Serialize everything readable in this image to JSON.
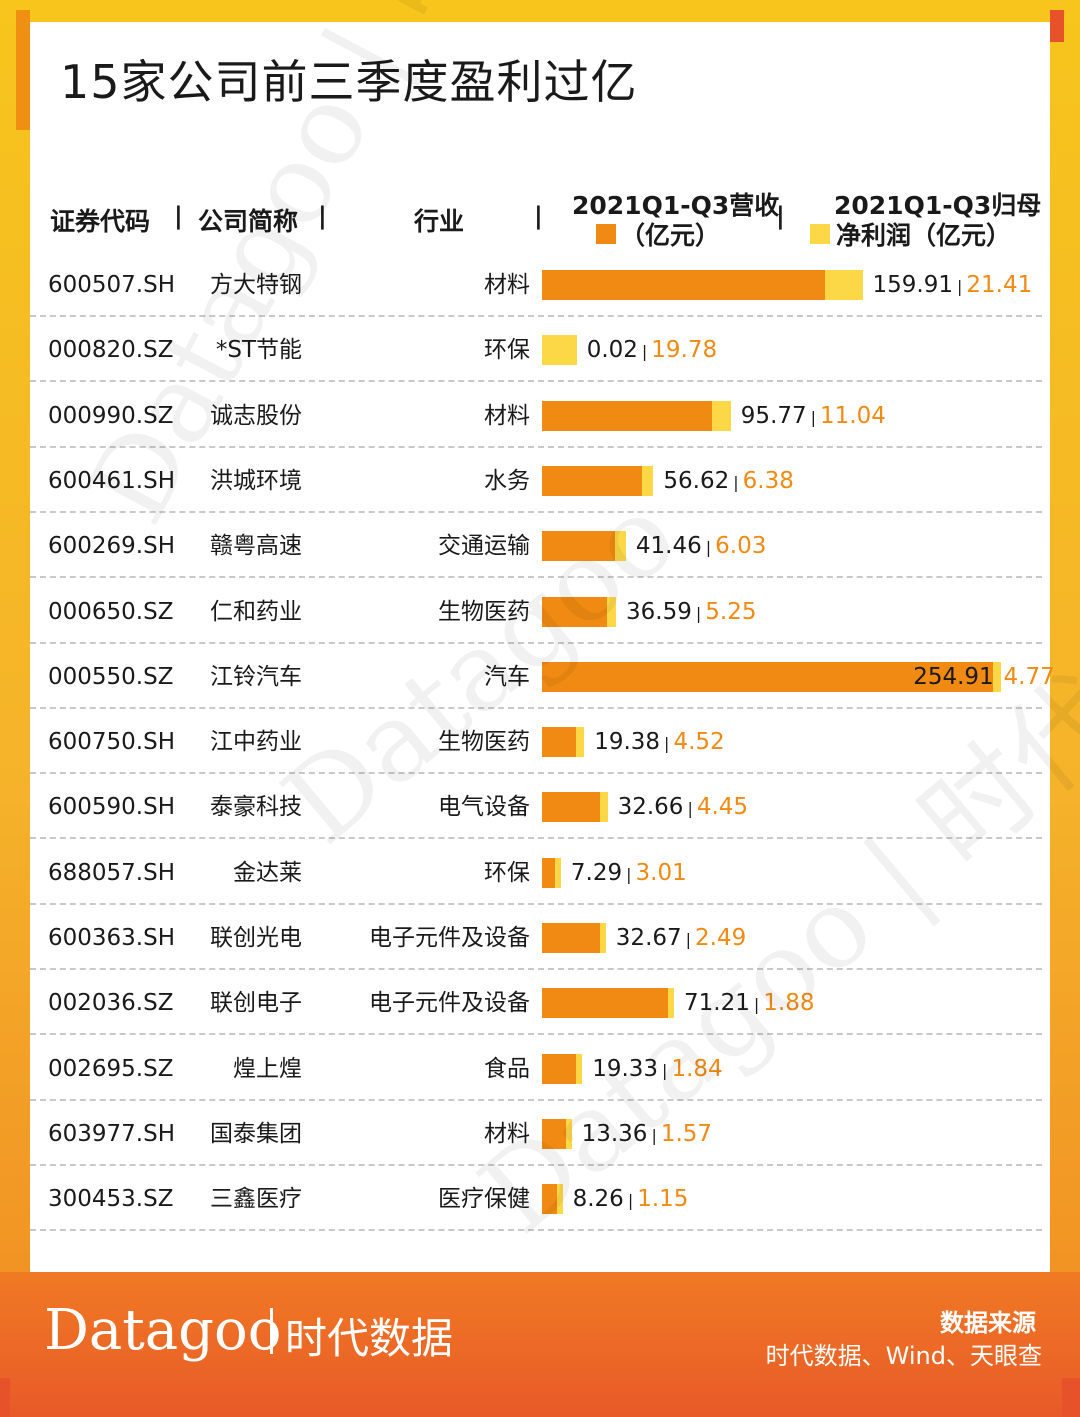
{
  "title": "15家公司前三季度盈利过亿",
  "headers": {
    "code": "证券代码",
    "name": "公司简称",
    "industry": "行业",
    "revenue_line1": "2021Q1-Q3营收",
    "revenue_line2": "（亿元）",
    "profit_line1": "2021Q1-Q3归母",
    "profit_line2": "净利润（亿元）",
    "separator": "|"
  },
  "colors": {
    "revenue": "#f08a12",
    "net_profit": "#fcd746",
    "accent": "#e8522a"
  },
  "chart_data": {
    "type": "bar",
    "orientation": "horizontal",
    "stacked": true,
    "categories": [
      "方大特钢",
      "*ST节能",
      "诚志股份",
      "洪城环境",
      "赣粤高速",
      "仁和药业",
      "江铃汽车",
      "江中药业",
      "泰豪科技",
      "金达莱",
      "联创光电",
      "联创电子",
      "煌上煌",
      "国泰集团",
      "三鑫医疗"
    ],
    "series": [
      {
        "name": "2021Q1-Q3营收（亿元）",
        "values": [
          159.91,
          0.02,
          95.77,
          56.62,
          41.46,
          36.59,
          254.91,
          19.38,
          32.66,
          7.29,
          32.67,
          71.21,
          19.33,
          13.36,
          8.26
        ]
      },
      {
        "name": "2021Q1-Q3归母净利润（亿元）",
        "values": [
          21.41,
          19.78,
          11.04,
          6.38,
          6.03,
          5.25,
          4.77,
          4.52,
          4.45,
          3.01,
          2.49,
          1.88,
          1.84,
          1.57,
          1.15
        ]
      }
    ]
  },
  "rows": [
    {
      "code": "600507.SH",
      "name": "方大特钢",
      "industry": "材料",
      "revenue": "159.91",
      "profit": "21.41"
    },
    {
      "code": "000820.SZ",
      "name": "*ST节能",
      "industry": "环保",
      "revenue": "0.02",
      "profit": "19.78"
    },
    {
      "code": "000990.SZ",
      "name": "诚志股份",
      "industry": "材料",
      "revenue": "95.77",
      "profit": "11.04"
    },
    {
      "code": "600461.SH",
      "name": "洪城环境",
      "industry": "水务",
      "revenue": "56.62",
      "profit": "6.38"
    },
    {
      "code": "600269.SH",
      "name": "赣粤高速",
      "industry": "交通运输",
      "revenue": "41.46",
      "profit": "6.03"
    },
    {
      "code": "000650.SZ",
      "name": "仁和药业",
      "industry": "生物医药",
      "revenue": "36.59",
      "profit": "5.25"
    },
    {
      "code": "000550.SZ",
      "name": "江铃汽车",
      "industry": "汽车",
      "revenue": "254.91",
      "profit": "4.77"
    },
    {
      "code": "600750.SH",
      "name": "江中药业",
      "industry": "生物医药",
      "revenue": "19.38",
      "profit": "4.52"
    },
    {
      "code": "600590.SH",
      "name": "泰豪科技",
      "industry": "电气设备",
      "revenue": "32.66",
      "profit": "4.45"
    },
    {
      "code": "688057.SH",
      "name": "金达莱",
      "industry": "环保",
      "revenue": "7.29",
      "profit": "3.01"
    },
    {
      "code": "600363.SH",
      "name": "联创光电",
      "industry": "电子元件及设备",
      "revenue": "32.67",
      "profit": "2.49"
    },
    {
      "code": "002036.SZ",
      "name": "联创电子",
      "industry": "电子元件及设备",
      "revenue": "71.21",
      "profit": "1.88"
    },
    {
      "code": "002695.SZ",
      "name": "煌上煌",
      "industry": "食品",
      "revenue": "19.33",
      "profit": "1.84"
    },
    {
      "code": "603977.SH",
      "name": "国泰集团",
      "industry": "材料",
      "revenue": "13.36",
      "profit": "1.57"
    },
    {
      "code": "300453.SZ",
      "name": "三鑫医疗",
      "industry": "医疗保健",
      "revenue": "8.26",
      "profit": "1.15"
    }
  ],
  "footer": {
    "brand": "Datagoo",
    "brand_cn": "时代数据",
    "source_title": "数据来源",
    "source_body": "时代数据、Wind、天眼查"
  },
  "watermark": {
    "brand": "Datagoo",
    "brand_cn": "时代数据"
  }
}
